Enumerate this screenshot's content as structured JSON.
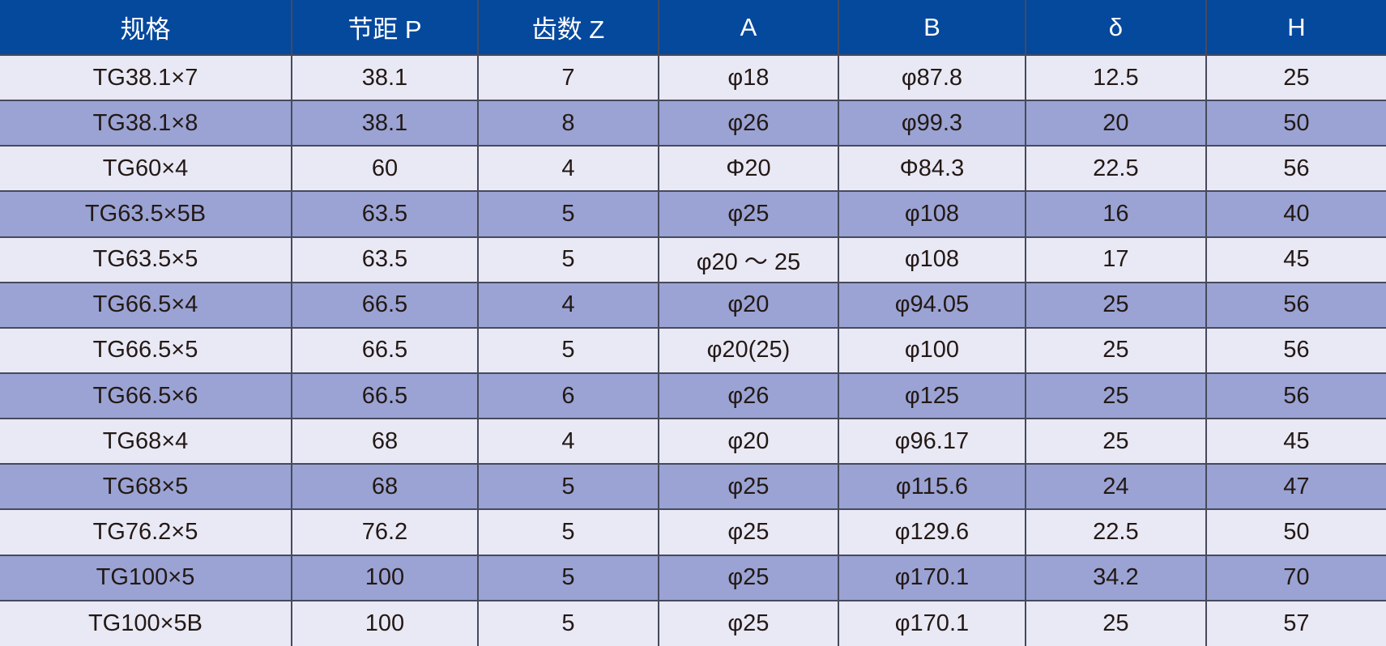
{
  "table": {
    "columns": [
      {
        "key": "spec",
        "label": "规格"
      },
      {
        "key": "pitch-p",
        "label": "节距 P"
      },
      {
        "key": "teeth-z",
        "label": "齿数 Z"
      },
      {
        "key": "a",
        "label": "A"
      },
      {
        "key": "b",
        "label": "B"
      },
      {
        "key": "delta",
        "label": "δ"
      },
      {
        "key": "h",
        "label": "H"
      }
    ],
    "rows": [
      [
        "TG38.1×7",
        "38.1",
        "7",
        "φ18",
        "φ87.8",
        "12.5",
        "25"
      ],
      [
        "TG38.1×8",
        "38.1",
        "8",
        "φ26",
        "φ99.3",
        "20",
        "50"
      ],
      [
        "TG60×4",
        "60",
        "4",
        "Φ20",
        "Φ84.3",
        "22.5",
        "56"
      ],
      [
        "TG63.5×5B",
        "63.5",
        "5",
        "φ25",
        "φ108",
        "16",
        "40"
      ],
      [
        "TG63.5×5",
        "63.5",
        "5",
        "φ20 ～ 25",
        "φ108",
        "17",
        "45"
      ],
      [
        "TG66.5×4",
        "66.5",
        "4",
        "φ20",
        "φ94.05",
        "25",
        "56"
      ],
      [
        "TG66.5×5",
        "66.5",
        "5",
        "φ20(25)",
        "φ100",
        "25",
        "56"
      ],
      [
        "TG66.5×6",
        "66.5",
        "6",
        "φ26",
        "φ125",
        "25",
        "56"
      ],
      [
        "TG68×4",
        "68",
        "4",
        "φ20",
        "φ96.17",
        "25",
        "45"
      ],
      [
        "TG68×5",
        "68",
        "5",
        "φ25",
        "φ115.6",
        "24",
        "47"
      ],
      [
        "TG76.2×5",
        "76.2",
        "5",
        "φ25",
        "φ129.6",
        "22.5",
        "50"
      ],
      [
        "TG100×5",
        "100",
        "5",
        "φ25",
        "φ170.1",
        "34.2",
        "70"
      ],
      [
        "TG100×5B",
        "100",
        "5",
        "φ25",
        "φ170.1",
        "25",
        "57"
      ]
    ],
    "column_width_percents": [
      21.04,
      13.44,
      13.03,
      12.98,
      13.5,
      13.03,
      12.98
    ]
  },
  "colors": {
    "header_background": "#05499d",
    "header_text": "#ffffff",
    "row_light": "#e9e9f5",
    "row_dark": "#9aa3d3",
    "grid_border": "#464a5c",
    "cell_text": "#231815"
  }
}
